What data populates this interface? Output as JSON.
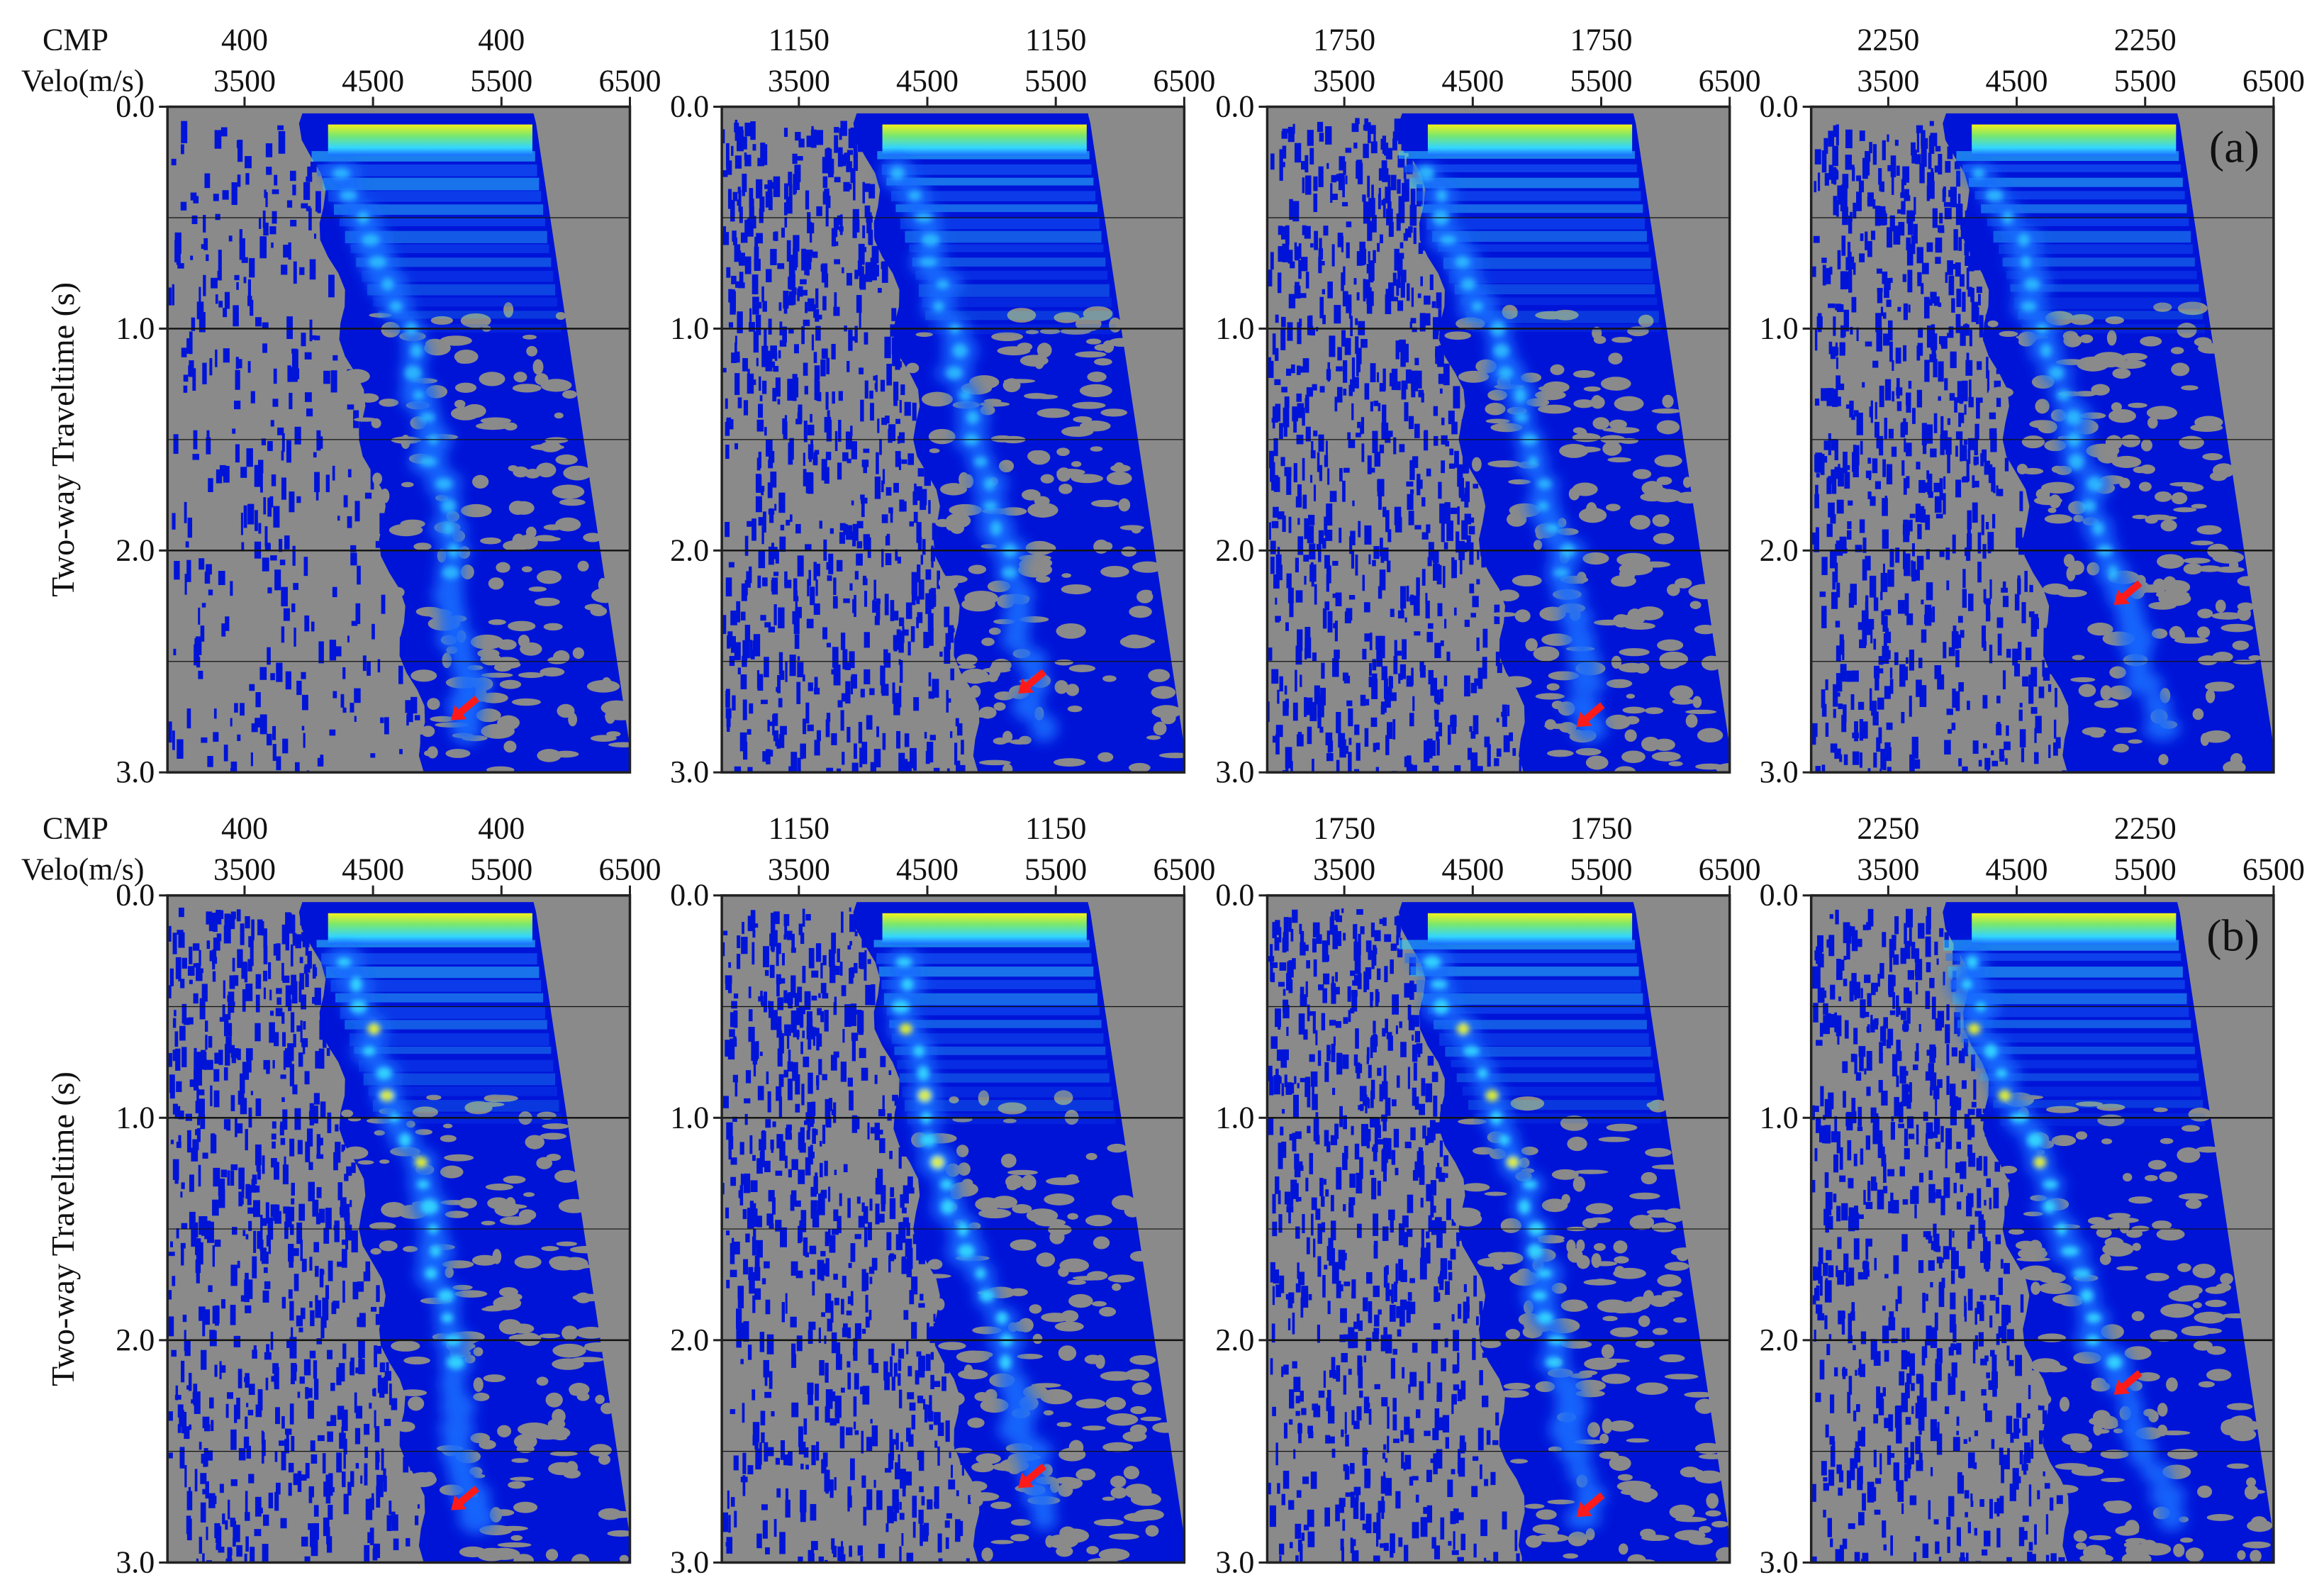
{
  "chart_data": [
    {
      "panel_label": "(a)",
      "rows": [
        {
          "cmp_label": "CMP",
          "velo_label": "Velo(m/s)",
          "ylabel": "Two-way Traveltime (s)",
          "panels": [
            {
              "type": "heatmap",
              "cmp": "400",
              "xlim": [
                2900,
                6500
              ],
              "ylim": [
                0.0,
                3.0
              ],
              "xticks": [
                "3500",
                "4500",
                "5500",
                "6500"
              ],
              "yticks": [
                "0.0",
                "1.0",
                "2.0",
                "3.0"
              ],
              "pick_trend": [
                [
                  4100,
                  0.1
                ],
                [
                  4750,
                  1.0
                ],
                [
                  5100,
                  2.0
                ],
                [
                  5250,
                  2.7
                ]
              ],
              "arrow": {
                "velocity": 5200,
                "time": 2.72
              }
            },
            {
              "type": "heatmap",
              "cmp": "1150",
              "xlim": [
                2900,
                6500
              ],
              "ylim": [
                0.0,
                3.0
              ],
              "xticks": [
                "3500",
                "4500",
                "5500",
                "6500"
              ],
              "yticks": [
                "0.0",
                "1.0",
                "2.0",
                "3.0"
              ],
              "pick_trend": [
                [
                  4200,
                  0.1
                ],
                [
                  4500,
                  0.6
                ],
                [
                  4750,
                  1.2
                ],
                [
                  5100,
                  2.0
                ],
                [
                  5300,
                  2.6
                ]
              ],
              "arrow": {
                "velocity": 5300,
                "time": 2.6
              }
            },
            {
              "type": "heatmap",
              "cmp": "1750",
              "xlim": [
                2900,
                6500
              ],
              "ylim": [
                0.0,
                3.0
              ],
              "xticks": [
                "3500",
                "4500",
                "5500",
                "6500"
              ],
              "yticks": [
                "0.0",
                "1.0",
                "2.0",
                "3.0"
              ],
              "pick_trend": [
                [
                  4000,
                  0.1
                ],
                [
                  4800,
                  1.2
                ],
                [
                  5200,
                  2.0
                ],
                [
                  5400,
                  2.75
                ]
              ],
              "arrow": {
                "velocity": 5400,
                "time": 2.75
              }
            },
            {
              "type": "heatmap",
              "cmp": "2250",
              "xlim": [
                2900,
                6500
              ],
              "ylim": [
                0.0,
                3.0
              ],
              "xticks": [
                "3500",
                "4500",
                "5500",
                "6500"
              ],
              "yticks": [
                "0.0",
                "1.0",
                "2.0",
                "3.0"
              ],
              "pick_trend": [
                [
                  4100,
                  0.1
                ],
                [
                  4500,
                  0.6
                ],
                [
                  4800,
                  1.2
                ],
                [
                  5100,
                  1.8
                ],
                [
                  5300,
                  2.2
                ]
              ],
              "arrow": {
                "velocity": 5350,
                "time": 2.2
              }
            }
          ]
        }
      ]
    },
    {
      "panel_label": "(b)",
      "rows": [
        {
          "cmp_label": "CMP",
          "velo_label": "Velo(m/s)",
          "ylabel": "Two-way Traveltime (s)",
          "panels": [
            {
              "type": "heatmap",
              "cmp": "400",
              "xlim": [
                2900,
                6500
              ],
              "ylim": [
                0.0,
                3.0
              ],
              "xticks": [
                "3500",
                "4500",
                "5500",
                "6500"
              ],
              "yticks": [
                "0.0",
                "1.0",
                "2.0",
                "3.0"
              ],
              "pick_trend": [
                [
                  4150,
                  0.1
                ],
                [
                  4850,
                  1.25
                ],
                [
                  5100,
                  2.0
                ],
                [
                  5250,
                  2.7
                ]
              ],
              "arrow": {
                "velocity": 5200,
                "time": 2.72
              }
            },
            {
              "type": "heatmap",
              "cmp": "1150",
              "xlim": [
                2900,
                6500
              ],
              "ylim": [
                0.0,
                3.0
              ],
              "xticks": [
                "3500",
                "4500",
                "5500",
                "6500"
              ],
              "yticks": [
                "0.0",
                "1.0",
                "2.0",
                "3.0"
              ],
              "pick_trend": [
                [
                  4200,
                  0.1
                ],
                [
                  4300,
                  0.4
                ],
                [
                  4500,
                  1.0
                ],
                [
                  4700,
                  1.4
                ],
                [
                  5100,
                  2.0
                ],
                [
                  5300,
                  2.6
                ]
              ],
              "arrow": {
                "velocity": 5300,
                "time": 2.62
              }
            },
            {
              "type": "heatmap",
              "cmp": "1750",
              "xlim": [
                2900,
                6500
              ],
              "ylim": [
                0.0,
                3.0
              ],
              "xticks": [
                "3500",
                "4500",
                "5500",
                "6500"
              ],
              "yticks": [
                "0.0",
                "1.0",
                "2.0",
                "3.0"
              ],
              "pick_trend": [
                [
                  4000,
                  0.1
                ],
                [
                  4900,
                  1.3
                ],
                [
                  5150,
                  2.0
                ],
                [
                  5400,
                  2.75
                ]
              ],
              "arrow": {
                "velocity": 5400,
                "time": 2.75
              }
            },
            {
              "type": "heatmap",
              "cmp": "2250",
              "xlim": [
                2900,
                6500
              ],
              "ylim": [
                0.0,
                3.0
              ],
              "xticks": [
                "3500",
                "4500",
                "5500",
                "6500"
              ],
              "yticks": [
                "0.0",
                "1.0",
                "2.0",
                "3.0"
              ],
              "pick_trend": [
                [
                  4050,
                  0.1
                ],
                [
                  4200,
                  0.6
                ],
                [
                  4700,
                  1.2
                ],
                [
                  5000,
                  1.8
                ],
                [
                  5300,
                  2.2
                ]
              ],
              "arrow": {
                "velocity": 5350,
                "time": 2.2
              }
            }
          ]
        }
      ]
    }
  ],
  "colors": {
    "background_gray": "#8a8a8a",
    "low": "#0014d8",
    "mid": "#1a6cff",
    "cyan": "#33d6ff",
    "green": "#7be86b",
    "yellow": "#f2f01e",
    "arrow": "#ff1a1a",
    "axis": "#222222"
  }
}
